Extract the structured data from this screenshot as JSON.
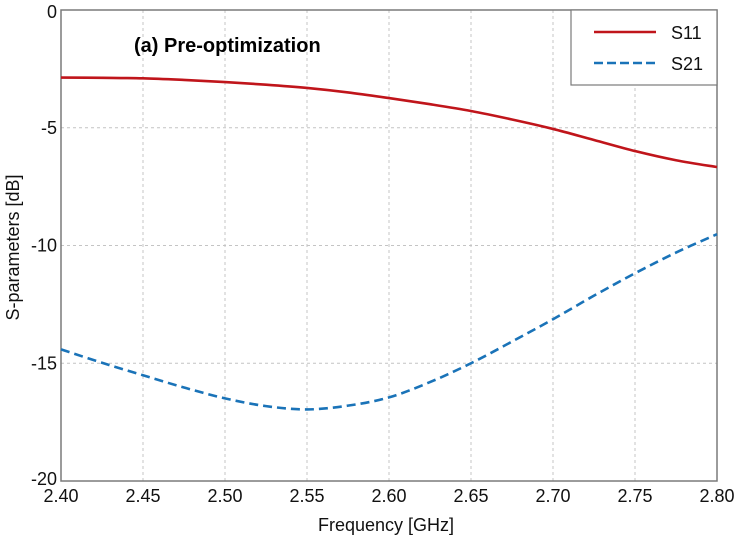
{
  "chart_data": {
    "type": "line",
    "title": "(a) Pre-optimization",
    "xlabel": "Frequency [GHz]",
    "ylabel": "S-parameters [dB]",
    "xlim": [
      2.4,
      2.8
    ],
    "ylim": [
      -20,
      0
    ],
    "grid": true,
    "legend_position": "top-right",
    "x_ticks": [
      "2.40",
      "2.45",
      "2.50",
      "2.55",
      "2.60",
      "2.65",
      "2.70",
      "2.75",
      "2.80"
    ],
    "x_tick_values": [
      2.4,
      2.45,
      2.5,
      2.55,
      2.6,
      2.65,
      2.7,
      2.75,
      2.8
    ],
    "y_ticks": [
      "0",
      "-5",
      "-10",
      "-15",
      "-20"
    ],
    "y_tick_values": [
      0,
      -5,
      -10,
      -15,
      -20
    ],
    "x": [
      2.4,
      2.425,
      2.45,
      2.475,
      2.5,
      2.525,
      2.55,
      2.575,
      2.6,
      2.625,
      2.65,
      2.675,
      2.7,
      2.725,
      2.75,
      2.775,
      2.8
    ],
    "series": [
      {
        "name": "S11",
        "color": "#c0151b",
        "style": "solid",
        "values": [
          -2.87,
          -2.88,
          -2.9,
          -2.97,
          -3.06,
          -3.17,
          -3.31,
          -3.5,
          -3.74,
          -4.0,
          -4.29,
          -4.65,
          -5.05,
          -5.52,
          -5.99,
          -6.38,
          -6.67
        ]
      },
      {
        "name": "S21",
        "color": "#1a73b8",
        "style": "dashed",
        "values": [
          -14.41,
          -14.98,
          -15.51,
          -16.03,
          -16.49,
          -16.82,
          -16.96,
          -16.8,
          -16.45,
          -15.8,
          -15.0,
          -14.08,
          -13.13,
          -12.13,
          -11.18,
          -10.3,
          -9.52
        ]
      }
    ]
  }
}
